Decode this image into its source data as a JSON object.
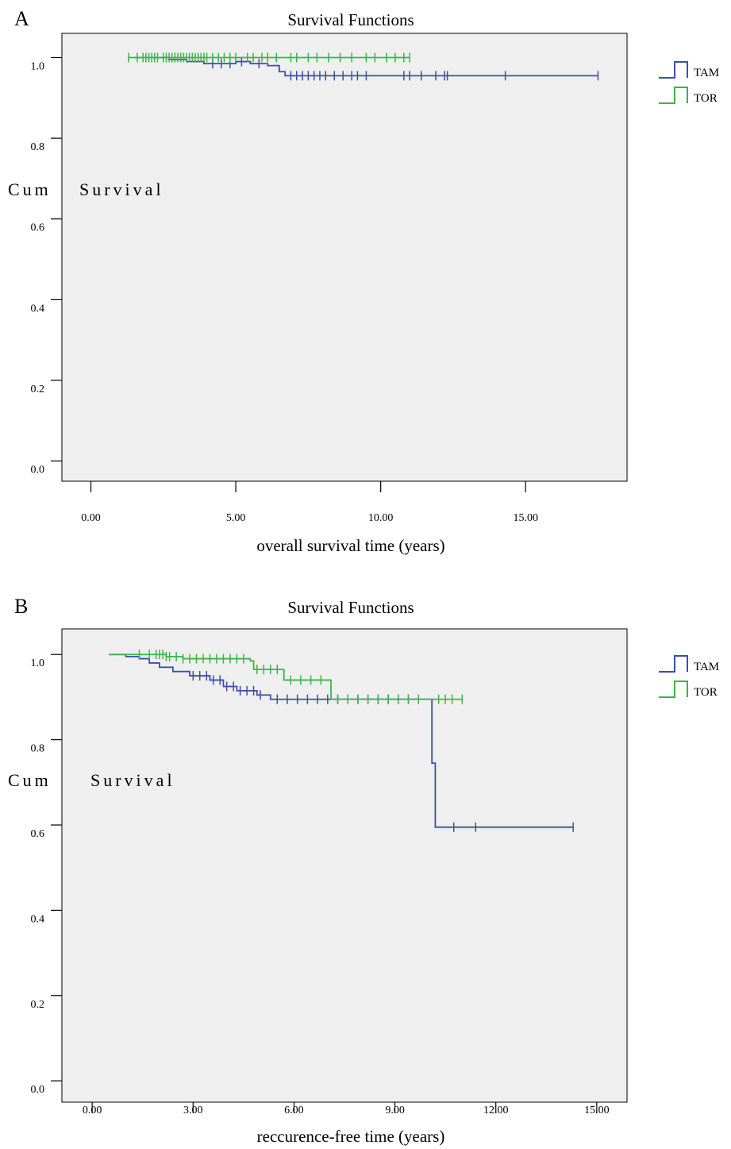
{
  "chart_data": [
    {
      "panel_label": "A",
      "type": "line",
      "subtype": "kaplan-meier",
      "title": "Survival Functions",
      "xlabel": "overall survival time (years)",
      "ylabel": "Cum Survival",
      "xlim": [
        -1,
        18.5
      ],
      "ylim": [
        -0.05,
        1.06
      ],
      "xticks": [
        0,
        5,
        10,
        15
      ],
      "xtick_labels": [
        "0.00",
        "5.00",
        "10.00",
        "15.00"
      ],
      "yticks": [
        0.0,
        0.2,
        0.4,
        0.6,
        0.8,
        1.0
      ],
      "ytick_labels": [
        "0.0",
        "0.2",
        "0.4",
        "0.6",
        "0.8",
        "1.0"
      ],
      "grid": false,
      "legend_position": "right",
      "series": [
        {
          "name": "TAM",
          "color": "#3b50a8",
          "steps": [
            [
              1.5,
              1.0
            ],
            [
              2.7,
              0.995
            ],
            [
              3.3,
              0.99
            ],
            [
              3.9,
              0.985
            ],
            [
              4.6,
              0.985
            ],
            [
              5.0,
              0.99
            ],
            [
              5.5,
              0.985
            ],
            [
              6.1,
              0.98
            ],
            [
              6.5,
              0.965
            ],
            [
              6.7,
              0.955
            ],
            [
              17.5,
              0.955
            ]
          ],
          "censored": [
            4.2,
            4.5,
            4.8,
            5.2,
            5.8,
            6.9,
            7.1,
            7.3,
            7.5,
            7.7,
            7.9,
            8.1,
            8.4,
            8.7,
            9.0,
            9.2,
            9.5,
            10.8,
            11.0,
            11.4,
            11.9,
            12.2,
            12.3,
            14.3,
            17.5
          ]
        },
        {
          "name": "TOR",
          "color": "#3cb54a",
          "steps": [
            [
              1.3,
              1.0
            ],
            [
              11.0,
              1.0
            ]
          ],
          "censored": [
            1.3,
            1.6,
            1.8,
            1.9,
            2.0,
            2.1,
            2.2,
            2.3,
            2.5,
            2.6,
            2.7,
            2.8,
            2.9,
            3.0,
            3.1,
            3.2,
            3.3,
            3.4,
            3.5,
            3.6,
            3.7,
            3.8,
            3.9,
            4.0,
            4.2,
            4.4,
            4.6,
            4.8,
            5.0,
            5.4,
            5.6,
            5.9,
            6.1,
            6.4,
            6.9,
            7.1,
            7.5,
            7.8,
            8.2,
            8.6,
            9.0,
            9.5,
            9.8,
            10.2,
            10.5,
            10.8,
            11.0
          ]
        }
      ]
    },
    {
      "panel_label": "B",
      "type": "line",
      "subtype": "kaplan-meier",
      "title": "Survival Functions",
      "xlabel": "reccurence-free time (years)",
      "ylabel": "Cum Survival",
      "xlim": [
        -0.9,
        15.9
      ],
      "ylim": [
        -0.05,
        1.06
      ],
      "xticks": [
        0,
        3,
        6,
        9,
        12,
        15
      ],
      "xtick_labels": [
        "0.00",
        "3.00",
        "6.00",
        "9.00",
        "12.00",
        "15.00"
      ],
      "yticks": [
        0.0,
        0.2,
        0.4,
        0.6,
        0.8,
        1.0
      ],
      "ytick_labels": [
        "0.0",
        "0.2",
        "0.4",
        "0.6",
        "0.8",
        "1.0"
      ],
      "grid": false,
      "legend_position": "right",
      "series": [
        {
          "name": "TAM",
          "color": "#3b50a8",
          "steps": [
            [
              0.5,
              1.0
            ],
            [
              1.0,
              0.995
            ],
            [
              1.4,
              0.99
            ],
            [
              1.7,
              0.98
            ],
            [
              2.0,
              0.97
            ],
            [
              2.4,
              0.96
            ],
            [
              2.9,
              0.95
            ],
            [
              3.5,
              0.94
            ],
            [
              3.9,
              0.925
            ],
            [
              4.3,
              0.915
            ],
            [
              4.9,
              0.905
            ],
            [
              5.3,
              0.895
            ],
            [
              10.1,
              0.895
            ],
            [
              10.1,
              0.745
            ],
            [
              10.2,
              0.745
            ],
            [
              10.2,
              0.595
            ],
            [
              14.3,
              0.595
            ]
          ],
          "censored": [
            3.0,
            3.2,
            3.4,
            3.6,
            3.8,
            4.0,
            4.2,
            4.4,
            4.6,
            4.8,
            5.0,
            5.5,
            5.8,
            6.1,
            6.4,
            6.7,
            7.0,
            7.3,
            7.6,
            7.9,
            8.2,
            8.5,
            8.8,
            9.1,
            9.4,
            9.7,
            10.75,
            11.4,
            14.3
          ]
        },
        {
          "name": "TOR",
          "color": "#3cb54a",
          "steps": [
            [
              0.5,
              1.0
            ],
            [
              1.5,
              1.0
            ],
            [
              2.2,
              0.995
            ],
            [
              2.7,
              0.99
            ],
            [
              4.7,
              0.985
            ],
            [
              4.8,
              0.965
            ],
            [
              5.6,
              0.965
            ],
            [
              5.7,
              0.94
            ],
            [
              7.1,
              0.94
            ],
            [
              7.1,
              0.895
            ],
            [
              11.0,
              0.895
            ]
          ],
          "censored": [
            1.4,
            1.7,
            1.9,
            2.0,
            2.1,
            2.2,
            2.3,
            2.5,
            2.7,
            2.9,
            3.1,
            3.3,
            3.5,
            3.7,
            3.9,
            4.1,
            4.3,
            4.5,
            4.9,
            5.1,
            5.3,
            5.5,
            5.9,
            6.2,
            6.5,
            6.8,
            7.3,
            7.6,
            7.9,
            8.2,
            8.5,
            8.8,
            9.1,
            9.4,
            9.7,
            10.3,
            10.5,
            10.7,
            11.0
          ]
        }
      ]
    }
  ]
}
